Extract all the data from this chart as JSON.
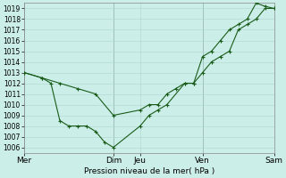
{
  "xlabel": "Pression niveau de la mer( hPa )",
  "ylim": [
    1005.5,
    1019.5
  ],
  "yticks": [
    1006,
    1007,
    1008,
    1009,
    1010,
    1011,
    1012,
    1013,
    1014,
    1015,
    1016,
    1017,
    1018,
    1019
  ],
  "background_color": "#cceee8",
  "line_color": "#1a5c1a",
  "xtick_labels": [
    "Mer",
    "Dim",
    "Jeu",
    "Ven",
    "Sam"
  ],
  "xtick_positions": [
    0,
    5,
    6.5,
    10,
    14
  ],
  "vline_positions": [
    0,
    5,
    10,
    14
  ],
  "line1_x": [
    0,
    1,
    2,
    3,
    4,
    5,
    6.5,
    7,
    7.5,
    8,
    8.5,
    9,
    9.5,
    10,
    10.5,
    11,
    11.5,
    12,
    12.5,
    13,
    13.5,
    14
  ],
  "line1_y": [
    1013,
    1012.5,
    1012,
    1011.5,
    1011,
    1009,
    1009.5,
    1010,
    1010,
    1011,
    1011.5,
    1012,
    1012,
    1013,
    1014,
    1014.5,
    1015,
    1017,
    1017.5,
    1018,
    1019,
    1019
  ],
  "line2_x": [
    0,
    1,
    1.5,
    2,
    2.5,
    3,
    3.5,
    4,
    4.5,
    5,
    6.5,
    7,
    7.5,
    8,
    9,
    9.5,
    10,
    10.5,
    11,
    11.5,
    12,
    12.5,
    13,
    13.5,
    14
  ],
  "line2_y": [
    1013,
    1012.5,
    1012,
    1008.5,
    1008,
    1008,
    1008,
    1007.5,
    1006.5,
    1006,
    1008,
    1009,
    1009.5,
    1010,
    1012,
    1012,
    1014.5,
    1015,
    1016,
    1017,
    1017.5,
    1018,
    1019.5,
    1019.2,
    1019
  ],
  "grid_color": "#aad8d0"
}
